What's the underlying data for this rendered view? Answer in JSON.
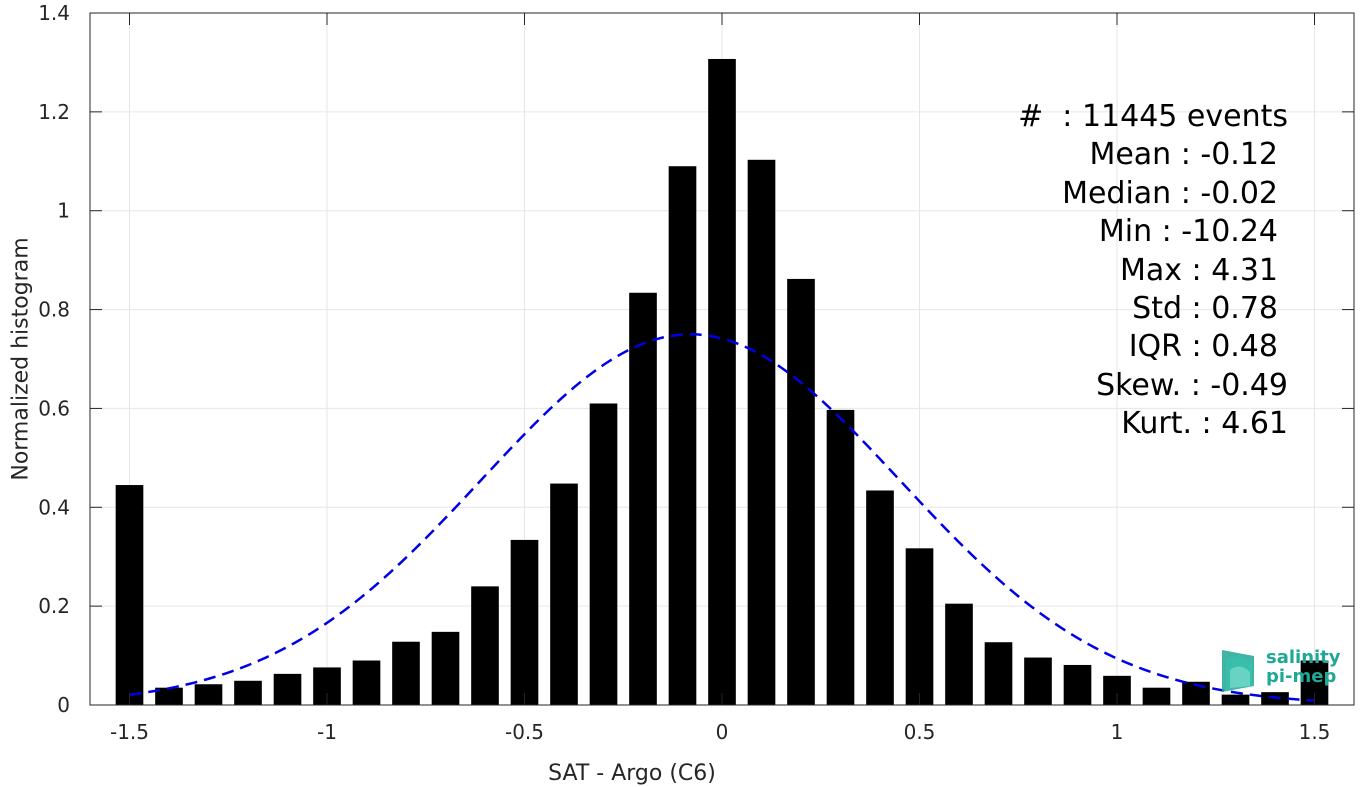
{
  "chart_data": {
    "type": "bar",
    "xlabel": "SAT - Argo (C6)",
    "ylabel": "Normalized histogram",
    "xlim": [
      -1.6,
      1.6
    ],
    "ylim": [
      0,
      1.4
    ],
    "xticks": [
      "-1.5",
      "-1",
      "-0.5",
      "0",
      "0.5",
      "1",
      "1.5"
    ],
    "xtick_values": [
      -1.5,
      -1,
      -0.5,
      0,
      0.5,
      1,
      1.5
    ],
    "yticks": [
      "0",
      "0.2",
      "0.4",
      "0.6",
      "0.8",
      "1",
      "1.2",
      "1.4"
    ],
    "ytick_values": [
      0,
      0.2,
      0.4,
      0.6,
      0.8,
      1,
      1.2,
      1.4
    ],
    "grid": true,
    "bar_color": "#000000",
    "bars": {
      "x": [
        -1.5,
        -1.4,
        -1.3,
        -1.2,
        -1.1,
        -1.0,
        -0.9,
        -0.8,
        -0.7,
        -0.6,
        -0.5,
        -0.4,
        -0.3,
        -0.2,
        -0.1,
        0.0,
        0.1,
        0.2,
        0.3,
        0.4,
        0.5,
        0.6,
        0.7,
        0.8,
        0.9,
        1.0,
        1.1,
        1.2,
        1.3,
        1.4,
        1.5
      ],
      "values": [
        0.445,
        0.035,
        0.042,
        0.049,
        0.063,
        0.076,
        0.09,
        0.128,
        0.148,
        0.24,
        0.334,
        0.448,
        0.61,
        0.834,
        1.09,
        1.307,
        1.103,
        0.862,
        0.597,
        0.434,
        0.317,
        0.205,
        0.127,
        0.096,
        0.081,
        0.059,
        0.035,
        0.047,
        0.021,
        0.026,
        0.09
      ],
      "width": 0.07
    },
    "fit_curve": {
      "style": "dashed",
      "color": "#0000e6",
      "mean": -0.08,
      "std": 0.53,
      "peak": 0.75,
      "x_range": [
        -1.5,
        1.5
      ]
    },
    "stats": [
      "#  : 11445 events",
      "Mean : -0.12",
      "Median : -0.02",
      "Min : -10.24",
      "Max : 4.31",
      "Std : 0.78",
      "IQR : 0.48",
      "Skew. : -0.49",
      "Kurt. : 4.61"
    ]
  },
  "logo": {
    "line1": "salinity",
    "line2": "pi-mep",
    "color": "#1fa896"
  }
}
